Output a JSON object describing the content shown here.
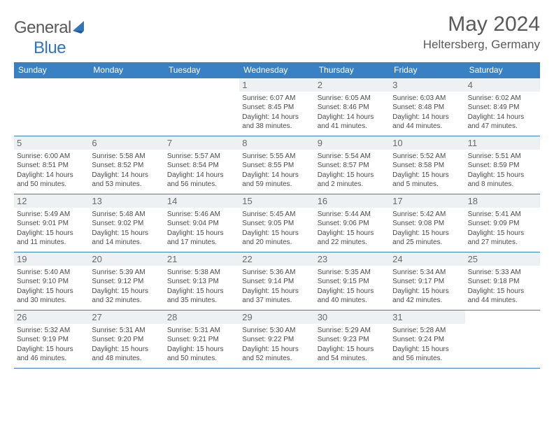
{
  "brand": {
    "name_gray": "General",
    "name_blue": "Blue"
  },
  "title": "May 2024",
  "location": "Heltersberg, Germany",
  "colors": {
    "header_bg": "#3a81c4",
    "daynum_bg": "#eef1f3",
    "border": "#3a81c4",
    "text_gray": "#5a5a5a",
    "brand_blue": "#2f75c1"
  },
  "day_names": [
    "Sunday",
    "Monday",
    "Tuesday",
    "Wednesday",
    "Thursday",
    "Friday",
    "Saturday"
  ],
  "weeks": [
    [
      null,
      null,
      null,
      {
        "n": "1",
        "sr": "6:07 AM",
        "ss": "8:45 PM",
        "dl": "14 hours and 38 minutes."
      },
      {
        "n": "2",
        "sr": "6:05 AM",
        "ss": "8:46 PM",
        "dl": "14 hours and 41 minutes."
      },
      {
        "n": "3",
        "sr": "6:03 AM",
        "ss": "8:48 PM",
        "dl": "14 hours and 44 minutes."
      },
      {
        "n": "4",
        "sr": "6:02 AM",
        "ss": "8:49 PM",
        "dl": "14 hours and 47 minutes."
      }
    ],
    [
      {
        "n": "5",
        "sr": "6:00 AM",
        "ss": "8:51 PM",
        "dl": "14 hours and 50 minutes."
      },
      {
        "n": "6",
        "sr": "5:58 AM",
        "ss": "8:52 PM",
        "dl": "14 hours and 53 minutes."
      },
      {
        "n": "7",
        "sr": "5:57 AM",
        "ss": "8:54 PM",
        "dl": "14 hours and 56 minutes."
      },
      {
        "n": "8",
        "sr": "5:55 AM",
        "ss": "8:55 PM",
        "dl": "14 hours and 59 minutes."
      },
      {
        "n": "9",
        "sr": "5:54 AM",
        "ss": "8:57 PM",
        "dl": "15 hours and 2 minutes."
      },
      {
        "n": "10",
        "sr": "5:52 AM",
        "ss": "8:58 PM",
        "dl": "15 hours and 5 minutes."
      },
      {
        "n": "11",
        "sr": "5:51 AM",
        "ss": "8:59 PM",
        "dl": "15 hours and 8 minutes."
      }
    ],
    [
      {
        "n": "12",
        "sr": "5:49 AM",
        "ss": "9:01 PM",
        "dl": "15 hours and 11 minutes."
      },
      {
        "n": "13",
        "sr": "5:48 AM",
        "ss": "9:02 PM",
        "dl": "15 hours and 14 minutes."
      },
      {
        "n": "14",
        "sr": "5:46 AM",
        "ss": "9:04 PM",
        "dl": "15 hours and 17 minutes."
      },
      {
        "n": "15",
        "sr": "5:45 AM",
        "ss": "9:05 PM",
        "dl": "15 hours and 20 minutes."
      },
      {
        "n": "16",
        "sr": "5:44 AM",
        "ss": "9:06 PM",
        "dl": "15 hours and 22 minutes."
      },
      {
        "n": "17",
        "sr": "5:42 AM",
        "ss": "9:08 PM",
        "dl": "15 hours and 25 minutes."
      },
      {
        "n": "18",
        "sr": "5:41 AM",
        "ss": "9:09 PM",
        "dl": "15 hours and 27 minutes."
      }
    ],
    [
      {
        "n": "19",
        "sr": "5:40 AM",
        "ss": "9:10 PM",
        "dl": "15 hours and 30 minutes."
      },
      {
        "n": "20",
        "sr": "5:39 AM",
        "ss": "9:12 PM",
        "dl": "15 hours and 32 minutes."
      },
      {
        "n": "21",
        "sr": "5:38 AM",
        "ss": "9:13 PM",
        "dl": "15 hours and 35 minutes."
      },
      {
        "n": "22",
        "sr": "5:36 AM",
        "ss": "9:14 PM",
        "dl": "15 hours and 37 minutes."
      },
      {
        "n": "23",
        "sr": "5:35 AM",
        "ss": "9:15 PM",
        "dl": "15 hours and 40 minutes."
      },
      {
        "n": "24",
        "sr": "5:34 AM",
        "ss": "9:17 PM",
        "dl": "15 hours and 42 minutes."
      },
      {
        "n": "25",
        "sr": "5:33 AM",
        "ss": "9:18 PM",
        "dl": "15 hours and 44 minutes."
      }
    ],
    [
      {
        "n": "26",
        "sr": "5:32 AM",
        "ss": "9:19 PM",
        "dl": "15 hours and 46 minutes."
      },
      {
        "n": "27",
        "sr": "5:31 AM",
        "ss": "9:20 PM",
        "dl": "15 hours and 48 minutes."
      },
      {
        "n": "28",
        "sr": "5:31 AM",
        "ss": "9:21 PM",
        "dl": "15 hours and 50 minutes."
      },
      {
        "n": "29",
        "sr": "5:30 AM",
        "ss": "9:22 PM",
        "dl": "15 hours and 52 minutes."
      },
      {
        "n": "30",
        "sr": "5:29 AM",
        "ss": "9:23 PM",
        "dl": "15 hours and 54 minutes."
      },
      {
        "n": "31",
        "sr": "5:28 AM",
        "ss": "9:24 PM",
        "dl": "15 hours and 56 minutes."
      },
      null
    ]
  ],
  "labels": {
    "sunrise": "Sunrise:",
    "sunset": "Sunset:",
    "daylight": "Daylight:"
  }
}
